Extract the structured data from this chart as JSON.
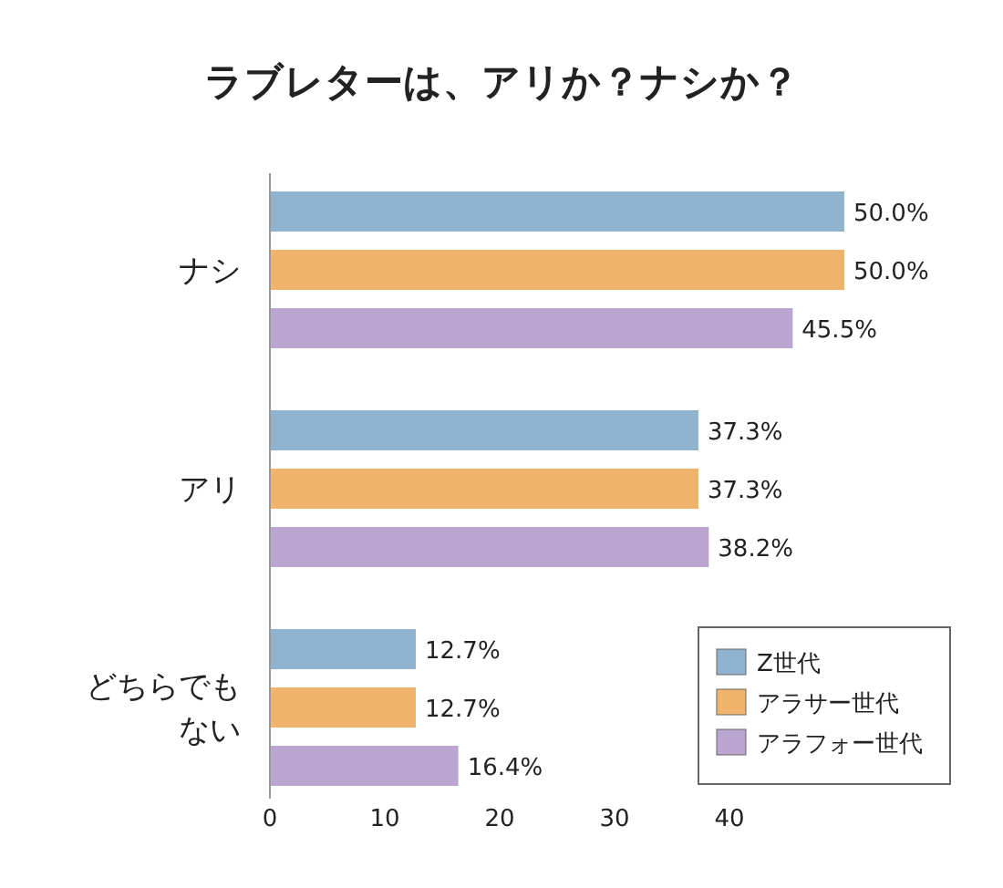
{
  "chart_data": {
    "type": "bar",
    "orientation": "horizontal",
    "title": "ラブレターは、アリか？ナシか？",
    "categories": [
      "ナシ",
      "アリ",
      "どちらでもない"
    ],
    "series": [
      {
        "name": "Z世代",
        "color": "#8fb3cf",
        "values": [
          50.0,
          37.3,
          12.7
        ],
        "value_labels": [
          "50.0%",
          "37.3%",
          "12.7%"
        ]
      },
      {
        "name": "アラサー世代",
        "color": "#efb36b",
        "values": [
          50.0,
          37.3,
          12.7
        ],
        "value_labels": [
          "50.0%",
          "37.3%",
          "12.7%"
        ]
      },
      {
        "name": "アラフォー世代",
        "color": "#b9a5d0",
        "values": [
          45.5,
          38.2,
          16.4
        ],
        "value_labels": [
          "45.5%",
          "38.2%",
          "16.4%"
        ]
      }
    ],
    "xlim": [
      0,
      50
    ],
    "xticks": [
      0,
      10,
      20,
      30,
      40
    ],
    "legend": "bottom right",
    "grid": false
  }
}
